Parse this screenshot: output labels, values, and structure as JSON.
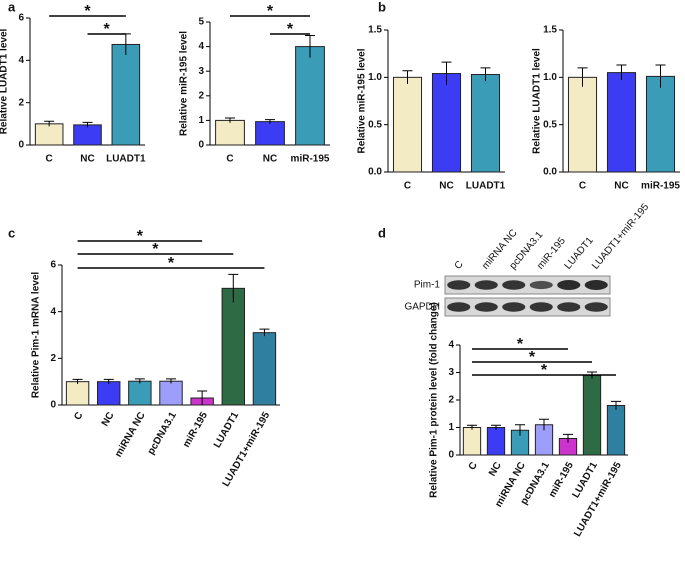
{
  "chart_data": [
    {
      "type": "bar",
      "panel": "a",
      "ylabel": "Relative LUADT1 level",
      "categories": [
        "C",
        "NC",
        "LUADT1"
      ],
      "values": [
        1.0,
        0.95,
        4.75
      ],
      "errors": [
        0.12,
        0.12,
        0.5
      ],
      "colors": [
        "#f3ebc3",
        "#3c3cf5",
        "#3a9cb6"
      ],
      "ylim": [
        0,
        6
      ],
      "yticks": [
        0,
        2,
        4,
        6
      ],
      "annotations": [
        "*",
        "*"
      ]
    },
    {
      "type": "bar",
      "ylabel": "Relative miR-195 level",
      "categories": [
        "C",
        "NC",
        "miR-195"
      ],
      "values": [
        1.0,
        0.95,
        4.0
      ],
      "errors": [
        0.1,
        0.08,
        0.45
      ],
      "colors": [
        "#f3ebc3",
        "#3c3cf5",
        "#3a9cb6"
      ],
      "ylim": [
        0,
        5
      ],
      "yticks": [
        0,
        1,
        2,
        3,
        4,
        5
      ],
      "annotations": [
        "*",
        "*"
      ]
    },
    {
      "type": "bar",
      "panel": "b",
      "ylabel": "Relative miR-195 level",
      "categories": [
        "C",
        "NC",
        "LUADT1"
      ],
      "values": [
        1.0,
        1.04,
        1.03
      ],
      "errors": [
        0.07,
        0.12,
        0.07
      ],
      "colors": [
        "#f3ebc3",
        "#3c3cf5",
        "#3a9cb6"
      ],
      "ylim": [
        0,
        1.5
      ],
      "yticks": [
        {
          "value": 0,
          "label": "0.0"
        },
        {
          "value": 0.5,
          "label": "0.5"
        },
        {
          "value": 1,
          "label": "1.0"
        },
        {
          "value": 1.5,
          "label": "1.5"
        }
      ]
    },
    {
      "type": "bar",
      "ylabel": "Relative LUADT1 level",
      "categories": [
        "C",
        "NC",
        "miR-195"
      ],
      "values": [
        1.0,
        1.05,
        1.01
      ],
      "errors": [
        0.1,
        0.08,
        0.12
      ],
      "colors": [
        "#f3ebc3",
        "#3c3cf5",
        "#3a9cb6"
      ],
      "ylim": [
        0,
        1.5
      ],
      "yticks": [
        {
          "value": 0,
          "label": "0.0"
        },
        {
          "value": 0.5,
          "label": "0.5"
        },
        {
          "value": 1,
          "label": "1.0"
        },
        {
          "value": 1.5,
          "label": "1.5"
        }
      ]
    },
    {
      "type": "bar",
      "panel": "c",
      "ylabel": "Relative Pim-1 mRNA level",
      "categories": [
        "C",
        "NC",
        "miRNA NC",
        "pcDNA3.1",
        "miR-195",
        "LUADT1",
        "LUADT1+miR-195"
      ],
      "values": [
        1.0,
        1.0,
        1.02,
        1.02,
        0.3,
        5.0,
        3.1
      ],
      "errors": [
        0.1,
        0.1,
        0.1,
        0.1,
        0.3,
        0.6,
        0.15
      ],
      "colors": [
        "#f3ebc3",
        "#3c3cf5",
        "#3a9cb6",
        "#9d9dfa",
        "#cc33cc",
        "#2e6b45",
        "#2f7fa0"
      ],
      "ylim": [
        0,
        6
      ],
      "yticks": [
        0,
        2,
        4,
        6
      ],
      "annotations": [
        "*",
        "*",
        "*"
      ]
    },
    {
      "type": "bar",
      "panel": "d",
      "ylabel": "Relative Pim-1 protein level (fold change)",
      "categories": [
        "C",
        "NC",
        "miRNA NC",
        "pcDNA3.1",
        "miR-195",
        "LUADT1",
        "LUADT1+miR-195"
      ],
      "values": [
        1.0,
        1.0,
        0.9,
        1.1,
        0.6,
        2.9,
        1.8
      ],
      "errors": [
        0.08,
        0.08,
        0.2,
        0.2,
        0.15,
        0.12,
        0.15
      ],
      "colors": [
        "#f3ebc3",
        "#3c3cf5",
        "#3a9cb6",
        "#9d9dfa",
        "#cc33cc",
        "#2e6b45",
        "#2f7fa0"
      ],
      "ylim": [
        0,
        4
      ],
      "yticks": [
        0,
        1,
        2,
        3,
        4
      ],
      "annotations": [
        "*",
        "*",
        "*"
      ],
      "blot_rows": [
        "Pim-1",
        "GAPDH"
      ]
    }
  ]
}
